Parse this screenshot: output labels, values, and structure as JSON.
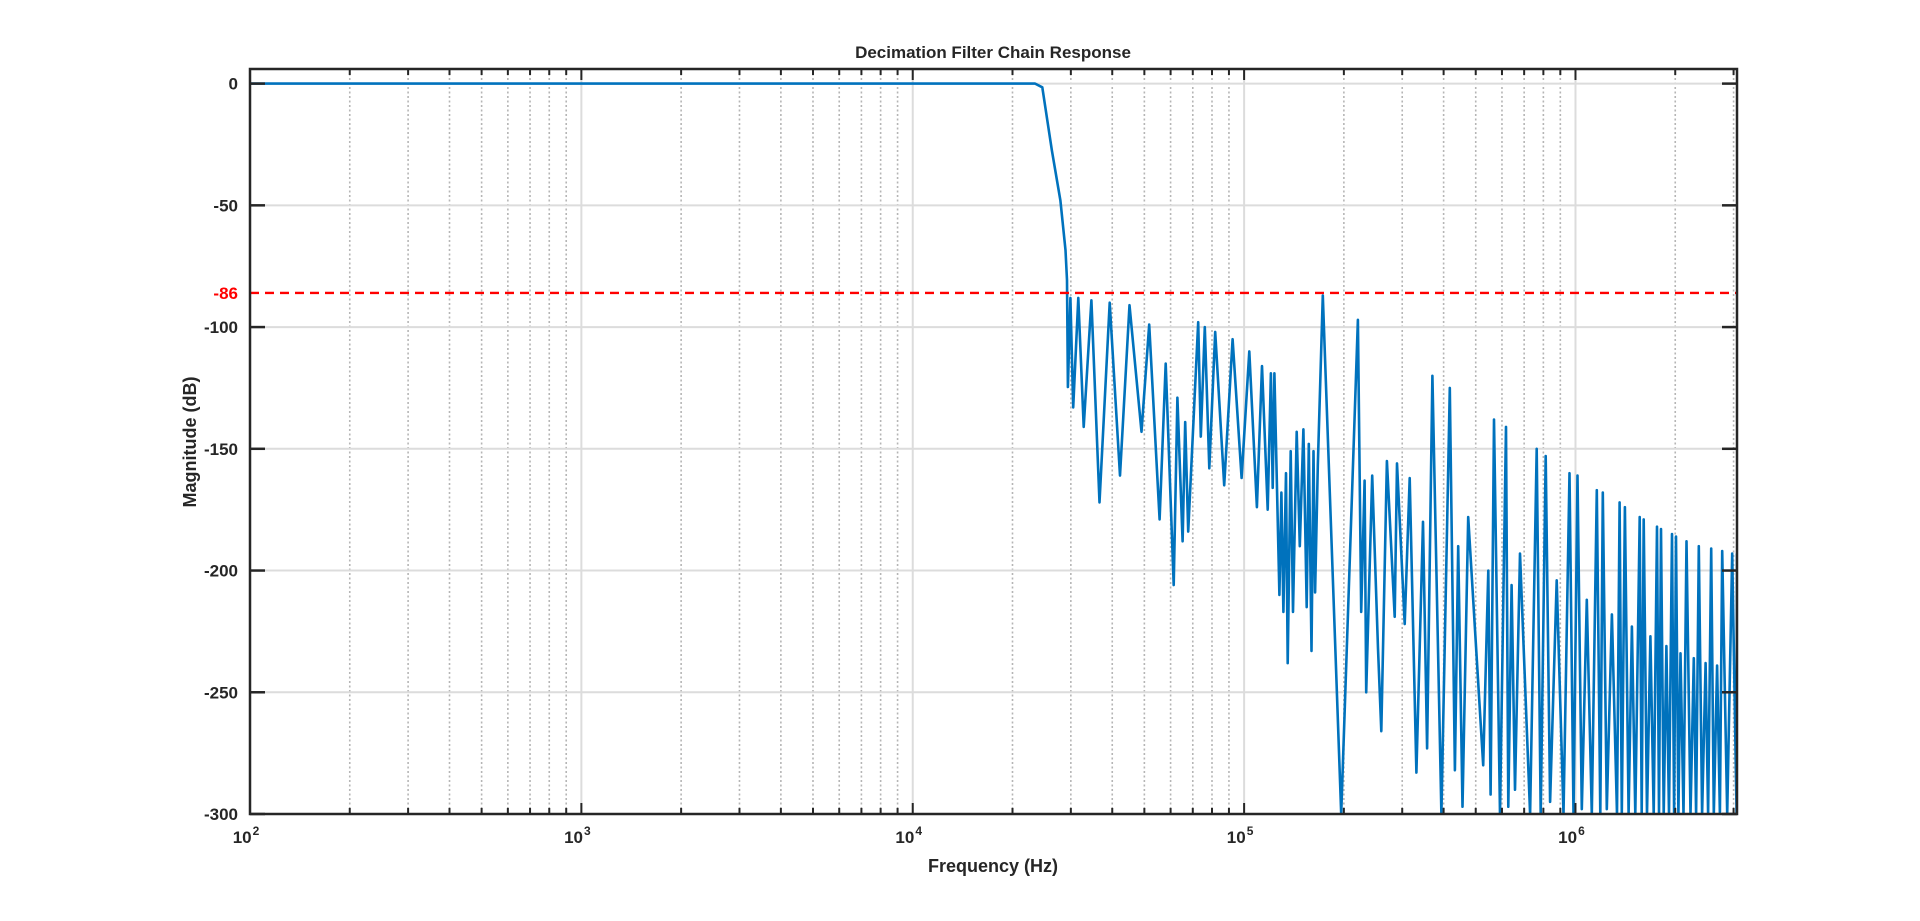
{
  "chart_data": {
    "type": "line",
    "title": "Decimation Filter Chain Response",
    "xlabel": "Frequency (Hz)",
    "ylabel": "Magnitude (dB)",
    "xscale": "log",
    "xlim": [
      100,
      3072000
    ],
    "ylim": [
      -300,
      6
    ],
    "grid": true,
    "minor_grid": true,
    "xticks": [
      100,
      1000,
      10000,
      100000,
      1000000
    ],
    "xtick_labels": [
      {
        "base": "10",
        "exp": "2"
      },
      {
        "base": "10",
        "exp": "3"
      },
      {
        "base": "10",
        "exp": "4"
      },
      {
        "base": "10",
        "exp": "5"
      },
      {
        "base": "10",
        "exp": "6"
      }
    ],
    "yticks": [
      0,
      -50,
      -100,
      -150,
      -200,
      -250,
      -300
    ],
    "ytick_labels": [
      "0",
      "-50",
      "-100",
      "-150",
      "-200",
      "-250",
      "-300"
    ],
    "colors": {
      "trace": "#0072BD",
      "reference": "#FF0000",
      "axes": "#262626"
    },
    "reference_line": {
      "value": -86,
      "label": "-86",
      "style": "dashed"
    },
    "series": [
      {
        "x": [
          100,
          23400,
          24600,
          26300,
          27900,
          28900,
          29200,
          29400,
          29900,
          30500,
          31600,
          32800,
          34600,
          36600,
          39300,
          42200,
          45100,
          49000,
          51700,
          55600,
          58000,
          61300,
          62900,
          65200,
          66400,
          67800,
          72700,
          74000,
          76100,
          78500,
          81800,
          87100,
          92300,
          98300,
          103700,
          109300,
          113200,
          117800,
          120500,
          122000,
          123400,
          127800,
          129600,
          131400,
          133800,
          135400,
          138200,
          140500,
          144100,
          147200,
          151000,
          154500,
          156700,
          159700,
          161900,
          163800,
          166900,
          172800,
          196300,
          220500,
          225600,
          231000,
          233600,
          243600,
          253500,
          259400,
          269800,
          284800,
          289300,
          305200,
          316100,
          331100,
          346700,
          356600,
          370000,
          393900,
          417700,
          432500,
          442600,
          456000,
          474500,
          526800,
          545500,
          554300,
          567600,
          591800,
          617100,
          627000,
          641600,
          657000,
          680300,
          729300,
          763600,
          785100,
          813000,
          838300,
          877900,
          919900,
          959200,
          986000,
          1014000,
          1045000,
          1082000,
          1120000,
          1160000,
          1188000,
          1209000,
          1243000,
          1288000,
          1334000,
          1359000,
          1380000,
          1410000,
          1446000,
          1480000,
          1515000,
          1562000,
          1584000,
          1606000,
          1644000,
          1683000,
          1722000,
          1762000,
          1787000,
          1812000,
          1846000,
          1881000,
          1915000,
          1956000,
          1984000,
          2011000,
          2045000,
          2074000,
          2118000,
          2163000,
          2224000,
          2276000,
          2312000,
          2356000,
          2411000,
          2469000,
          2513000,
          2567000,
          2615000,
          2676000,
          2727000,
          2771000,
          2870000,
          2971000,
          3064000,
          3072000
        ],
        "y": [
          0,
          0,
          -1.5,
          -27.5,
          -48,
          -68.4,
          -80.7,
          -124.6,
          -88,
          -133,
          -88,
          -141,
          -89,
          -172,
          -90,
          -161,
          -91,
          -143,
          -99,
          -179,
          -115,
          -206,
          -129,
          -188,
          -139,
          -184,
          -98,
          -145,
          -100,
          -158,
          -102,
          -165,
          -105,
          -162,
          -110,
          -174,
          -116,
          -175,
          -119,
          -166,
          -119,
          -210,
          -168,
          -217,
          -160,
          -238,
          -151,
          -217,
          -143,
          -190,
          -142,
          -215,
          -148,
          -233,
          -151,
          -209,
          -157,
          -87,
          -300,
          -97,
          -217,
          -163,
          -250,
          -161,
          -232,
          -266,
          -155,
          -219,
          -156,
          -222,
          -162,
          -283,
          -180,
          -273,
          -120,
          -300,
          -125,
          -282,
          -190,
          -297,
          -178,
          -280,
          -200,
          -292,
          -138,
          -300,
          -141,
          -297,
          -206,
          -290,
          -193,
          -300,
          -150,
          -300,
          -153,
          -295,
          -204,
          -300,
          -160,
          -300,
          -161,
          -298,
          -212,
          -300,
          -167,
          -300,
          -168,
          -298,
          -218,
          -300,
          -172,
          -300,
          -174,
          -300,
          -223,
          -300,
          -178,
          -300,
          -179,
          -300,
          -227,
          -300,
          -182,
          -300,
          -183,
          -300,
          -231,
          -300,
          -185,
          -300,
          -186,
          -300,
          -234,
          -300,
          -188,
          -300,
          -236,
          -300,
          -190,
          -300,
          -238,
          -300,
          -191,
          -300,
          -239,
          -300,
          -192,
          -300,
          -193,
          -300,
          -193
        ]
      }
    ]
  }
}
